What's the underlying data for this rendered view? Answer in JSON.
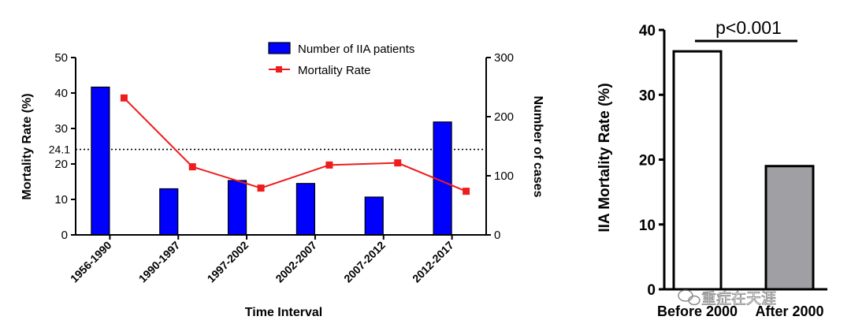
{
  "chart_data": [
    {
      "type": "bar+line",
      "xlabel": "Time Interval",
      "ylabel_left": "Mortality Rate (%)",
      "ylabel_right": "Number of cases",
      "categories": [
        "1956-1990",
        "1990-1997",
        "1997-2002",
        "2002-2007",
        "2007-2012",
        "2012-2017"
      ],
      "ylim_left": [
        0,
        50
      ],
      "yticks_left": [
        "0",
        "10",
        "20",
        "30",
        "40",
        "50"
      ],
      "ylim_right": [
        0,
        300
      ],
      "yticks_right": [
        "0",
        "100",
        "200",
        "300"
      ],
      "reference_line": {
        "value": 24.1,
        "label": "24.1",
        "style": "dotted"
      },
      "series": [
        {
          "name": "Number of IIA patients",
          "kind": "bar",
          "axis": "right",
          "color": "#0000ff",
          "values": [
            250,
            78,
            92,
            87,
            64,
            191
          ]
        },
        {
          "name": "Mortality Rate",
          "kind": "line",
          "axis": "left",
          "color": "#ee1c1c",
          "values": [
            38.6,
            19.2,
            13.2,
            19.7,
            20.3,
            12.3
          ]
        }
      ],
      "legend": {
        "position": "top-center"
      }
    },
    {
      "type": "bar",
      "ylabel": "IIA Mortality Rate (%)",
      "categories": [
        "Before 2000",
        "After 2000"
      ],
      "values": [
        36.7,
        19.0
      ],
      "colors": [
        "#ffffff",
        "#a0a0a4"
      ],
      "ylim": [
        0,
        40
      ],
      "yticks": [
        "0",
        "10",
        "20",
        "30",
        "40"
      ],
      "annotation": "p<0.001"
    }
  ],
  "watermark": {
    "text": "重症在天涯",
    "icon": "wechat-icon"
  }
}
